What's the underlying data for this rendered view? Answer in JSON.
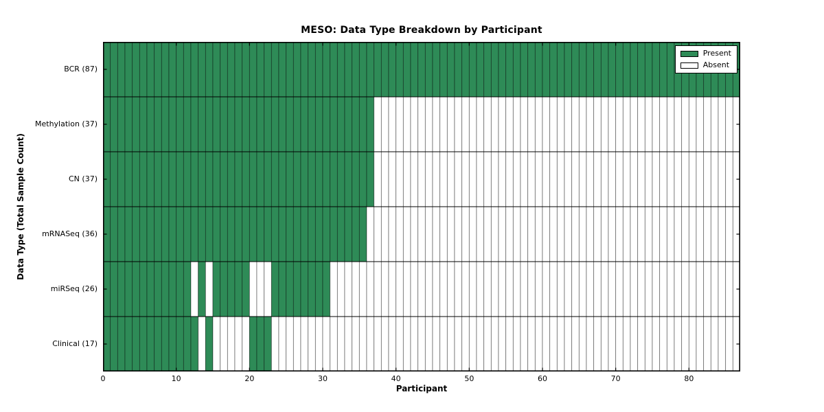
{
  "chart_data": {
    "type": "heatmap",
    "title": "MESO: Data Type Breakdown by Participant",
    "xlabel": "Participant",
    "ylabel": "Data Type (Total Sample Count)",
    "n_participants": 87,
    "x_ticks": [
      0,
      10,
      20,
      30,
      40,
      50,
      60,
      70,
      80
    ],
    "colors": {
      "present": "#2e8b57",
      "absent": "#ffffff",
      "cell_border": "rgba(0,0,0,0.5)",
      "axis": "#000000"
    },
    "legend": {
      "position": "upper-right",
      "entries": [
        {
          "label": "Present",
          "color": "#2e8b57"
        },
        {
          "label": "Absent",
          "color": "#ffffff"
        }
      ]
    },
    "rows": [
      {
        "label": "BCR",
        "count": 87,
        "display": "BCR (87)",
        "present_ranges": [
          [
            0,
            86
          ]
        ]
      },
      {
        "label": "Methylation",
        "count": 37,
        "display": "Methylation (37)",
        "present_ranges": [
          [
            0,
            36
          ]
        ]
      },
      {
        "label": "CN",
        "count": 37,
        "display": "CN (37)",
        "present_ranges": [
          [
            0,
            36
          ]
        ]
      },
      {
        "label": "mRNASeq",
        "count": 36,
        "display": "mRNASeq (36)",
        "present_ranges": [
          [
            0,
            35
          ]
        ]
      },
      {
        "label": "miRSeq",
        "count": 26,
        "display": "miRSeq (26)",
        "present_ranges": [
          [
            0,
            11
          ],
          [
            13,
            13
          ],
          [
            15,
            19
          ],
          [
            23,
            30
          ]
        ]
      },
      {
        "label": "Clinical",
        "count": 17,
        "display": "Clinical (17)",
        "present_ranges": [
          [
            0,
            12
          ],
          [
            14,
            14
          ],
          [
            20,
            22
          ]
        ]
      }
    ]
  }
}
